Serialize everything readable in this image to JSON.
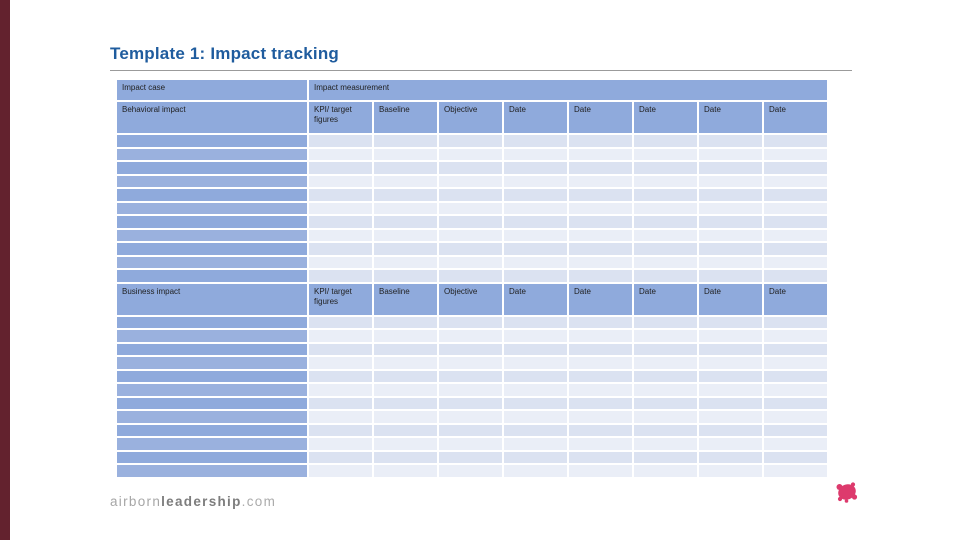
{
  "slide": {
    "title": "Template 1: Impact tracking"
  },
  "table": {
    "corner_header": "Impact case",
    "span_header": "Impact measurement",
    "sections": [
      {
        "row_header": "Behavioral impact",
        "columns": [
          "KPI/ target figures",
          "Baseline",
          "Objective",
          "Date",
          "Date",
          "Date",
          "Date",
          "Date"
        ],
        "empty_rows": 11
      },
      {
        "row_header": "Business impact",
        "columns": [
          "KPI/ target figures",
          "Baseline",
          "Objective",
          "Date",
          "Date",
          "Date",
          "Date",
          "Date"
        ],
        "empty_rows": 12
      }
    ]
  },
  "footer": {
    "brand": {
      "part1": "airborn",
      "part2": "leadership",
      "part3": ".com"
    }
  },
  "colors": {
    "accent_bar": "#63222e",
    "title": "#1f5c9e",
    "rule": "#9b9b9b",
    "table_header": "#8faadc",
    "first_col": "#8faadc",
    "first_col_alt": "#9ab1de",
    "row_band_a": "#dbe2f1",
    "row_band_b": "#eaeef7",
    "logo_pink": "#dd3a6d"
  }
}
